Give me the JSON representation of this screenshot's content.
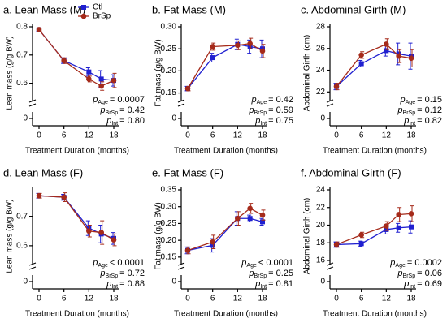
{
  "series_style": [
    {
      "name": "Ctl",
      "color": "#2020d0",
      "marker": "square"
    },
    {
      "name": "BrSp",
      "color": "#a52a1a",
      "marker": "circle"
    }
  ],
  "p_symbol": "p",
  "chart_data": [
    {
      "type": "line",
      "title": "a. Lean Mass (M)",
      "xlabel": "Treatment Duration (months)",
      "ylabel": "Lean mass (g/g BW)",
      "x": [
        0,
        6,
        12,
        15,
        18
      ],
      "xlim": [
        -1.5,
        19
      ],
      "xticks": [
        0,
        6,
        12,
        18
      ],
      "ylim": [
        0.55,
        0.8
      ],
      "yticks": [
        0.6,
        0.7,
        0.8
      ],
      "ybreak_tick": 0,
      "series": [
        {
          "values": [
            0.79,
            0.68,
            0.64,
            0.615,
            0.61
          ],
          "errors": [
            0.005,
            0.01,
            0.015,
            0.03,
            0.02
          ]
        },
        {
          "values": [
            0.79,
            0.68,
            0.615,
            0.59,
            0.61
          ],
          "errors": [
            0.005,
            0.01,
            0.01,
            0.015,
            0.025
          ]
        }
      ],
      "annotations": [
        {
          "sub": "Age",
          "text": "= 0.0007"
        },
        {
          "sub": "BrSp",
          "text": "= 0.42"
        },
        {
          "sub": "Int",
          "text": "= 0.80"
        }
      ],
      "legend": true
    },
    {
      "type": "line",
      "title": "b. Fat Mass (M)",
      "xlabel": "Treatment Duration (months)",
      "ylabel": "Fat mass (g/g BW)",
      "x": [
        0,
        6,
        12,
        15,
        18
      ],
      "xlim": [
        -1.5,
        19
      ],
      "xticks": [
        0,
        6,
        12,
        18
      ],
      "ylim": [
        0.14,
        0.3
      ],
      "yticks": [
        0.15,
        {
          "value": 0.2,
          "label": "0.20"
        },
        0.25,
        {
          "value": 0.3,
          "label": "0.30"
        }
      ],
      "ybreak_tick": 0,
      "series": [
        {
          "values": [
            0.16,
            0.23,
            0.26,
            0.255,
            0.25
          ],
          "errors": [
            0.005,
            0.01,
            0.012,
            0.015,
            0.02
          ]
        },
        {
          "values": [
            0.16,
            0.255,
            0.258,
            0.262,
            0.245
          ],
          "errors": [
            0.005,
            0.008,
            0.01,
            0.012,
            0.015
          ]
        }
      ],
      "annotations": [
        {
          "sub": "Age",
          "text": "= 0.42"
        },
        {
          "sub": "BrSp",
          "text": "= 0.59"
        },
        {
          "sub": "Int",
          "text": "= 0.75"
        }
      ]
    },
    {
      "type": "line",
      "title": "c. Abdominal Girth (M)",
      "xlabel": "Treatment Duration (months)",
      "ylabel": "Abdominal Girth (cm)",
      "x": [
        0,
        6,
        12,
        15,
        18
      ],
      "xlim": [
        -1.5,
        19
      ],
      "xticks": [
        0,
        6,
        12,
        18
      ],
      "ylim": [
        21.5,
        28
      ],
      "yticks": [
        22,
        24,
        26,
        28
      ],
      "ybreak_tick": 0,
      "series": [
        {
          "values": [
            22.5,
            24.6,
            25.8,
            25.5,
            25.3
          ],
          "errors": [
            0.3,
            0.3,
            0.5,
            1,
            1.2
          ]
        },
        {
          "values": [
            22.5,
            25.4,
            26.4,
            25.3,
            25.1
          ],
          "errors": [
            0.3,
            0.3,
            0.5,
            0.6,
            0.8
          ]
        }
      ],
      "annotations": [
        {
          "sub": "Age",
          "text": "= 0.15"
        },
        {
          "sub": "BrSp",
          "text": "= 0.12"
        },
        {
          "sub": "Int",
          "text": "= 0.82"
        }
      ]
    },
    {
      "type": "line",
      "title": "d. Lean Mass (F)",
      "xlabel": "Treatment Duration (months)",
      "ylabel": "Lean mass (g/g BW)",
      "x": [
        0,
        6,
        12,
        15,
        18
      ],
      "xlim": [
        -1.5,
        19
      ],
      "xticks": [
        0,
        6,
        12,
        18
      ],
      "ylim": [
        0.55,
        0.79
      ],
      "yticks": [
        0.6,
        0.7
      ],
      "ybreak_tick": 0,
      "series": [
        {
          "values": [
            0.77,
            0.765,
            0.66,
            0.64,
            0.625
          ],
          "errors": [
            0.008,
            0.01,
            0.025,
            0.03,
            0.02
          ]
        },
        {
          "values": [
            0.77,
            0.765,
            0.65,
            0.645,
            0.62
          ],
          "errors": [
            0.008,
            0.015,
            0.02,
            0.04,
            0.02
          ]
        }
      ],
      "annotations": [
        {
          "sub": "Age",
          "text": "< 0.0001"
        },
        {
          "sub": "BrSp",
          "text": "= 0.72"
        },
        {
          "sub": "Int",
          "text": "= 0.88"
        }
      ]
    },
    {
      "type": "line",
      "title": "e. Fat Mass (F)",
      "xlabel": "Treatment Duration (months)",
      "ylabel": "Fat mass (g/g BW)",
      "x": [
        0,
        6,
        12,
        15,
        18
      ],
      "xlim": [
        -1.5,
        19
      ],
      "xticks": [
        0,
        6,
        12,
        18
      ],
      "ylim": [
        0.14,
        0.35
      ],
      "yticks": [
        0.15,
        {
          "value": 0.2,
          "label": "0.20"
        },
        0.25,
        {
          "value": 0.3,
          "label": "0.30"
        },
        0.35
      ],
      "ybreak_tick": 0,
      "series": [
        {
          "values": [
            0.17,
            0.185,
            0.265,
            0.265,
            0.255
          ],
          "errors": [
            0.01,
            0.02,
            0.02,
            0.01,
            0.01
          ]
        },
        {
          "values": [
            0.17,
            0.195,
            0.265,
            0.295,
            0.275
          ],
          "errors": [
            0.01,
            0.02,
            0.02,
            0.015,
            0.015
          ]
        }
      ],
      "annotations": [
        {
          "sub": "Age",
          "text": "< 0.0001"
        },
        {
          "sub": "BrSp",
          "text": "= 0.25"
        },
        {
          "sub": "Int",
          "text": "= 0.81"
        }
      ]
    },
    {
      "type": "line",
      "title": "f. Abdominal Girth (F)",
      "xlabel": "Treatment Duration (months)",
      "ylabel": "Abdominal Girth (cm)",
      "x": [
        0,
        6,
        12,
        15,
        18
      ],
      "xlim": [
        -1.5,
        19
      ],
      "xticks": [
        0,
        6,
        12,
        18
      ],
      "ylim": [
        16,
        24
      ],
      "yticks": [
        16,
        18,
        20,
        22,
        24
      ],
      "ybreak_tick": 0,
      "series": [
        {
          "values": [
            17.8,
            17.9,
            19.5,
            19.7,
            19.8
          ],
          "errors": [
            0.3,
            0.3,
            0.5,
            0.5,
            0.7
          ]
        },
        {
          "values": [
            17.8,
            18.9,
            19.9,
            21.2,
            21.3
          ],
          "errors": [
            0.3,
            0.3,
            0.5,
            0.8,
            0.9
          ]
        }
      ],
      "annotations": [
        {
          "sub": "Age",
          "text": "= 0.0002"
        },
        {
          "sub": "BrSp",
          "text": "= 0.06"
        },
        {
          "sub": "Int",
          "text": "= 0.69"
        }
      ]
    }
  ]
}
